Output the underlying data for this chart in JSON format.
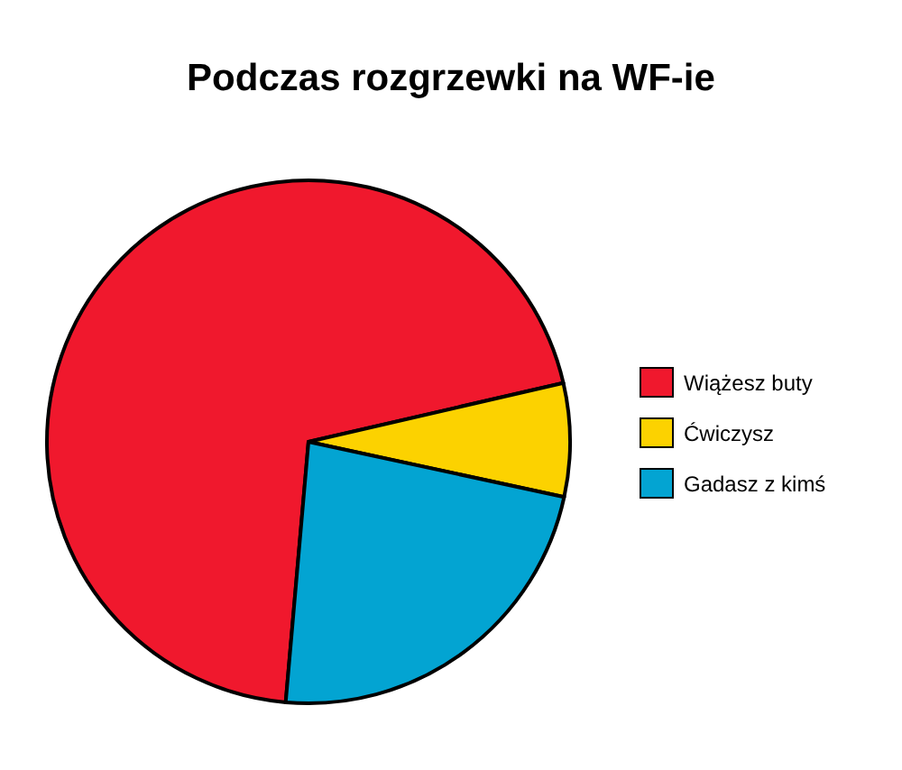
{
  "chart_data": {
    "type": "pie",
    "title": "Podczas rozgrzewki na WF-ie",
    "categories": [
      "Wiążesz buty",
      "Ćwiczysz",
      "Gadasz z kimś"
    ],
    "values": [
      70,
      7,
      23
    ],
    "colors": [
      "#f0182d",
      "#fcd200",
      "#03a4d2"
    ],
    "legend": "right"
  }
}
